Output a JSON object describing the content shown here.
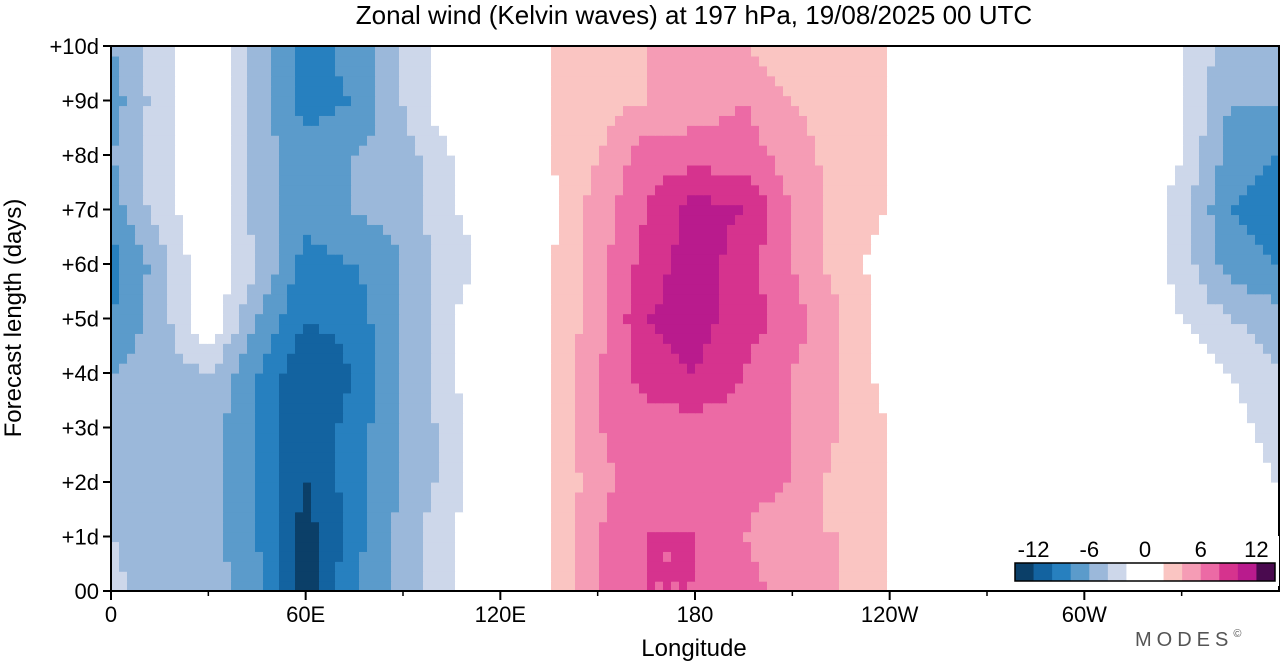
{
  "chart_data": {
    "type": "heatmap",
    "title": "Zonal wind (Kelvin waves) at 197 hPa,  19/08/2025  00 UTC",
    "xlabel": "Longitude",
    "ylabel": "Forecast length (days)",
    "x_ticks": [
      {
        "lon": 0,
        "label": "0"
      },
      {
        "lon": 60,
        "label": "60E"
      },
      {
        "lon": 120,
        "label": "120E"
      },
      {
        "lon": 180,
        "label": "180"
      },
      {
        "lon": 240,
        "label": "120W"
      },
      {
        "lon": 300,
        "label": "60W"
      }
    ],
    "x_minor_ticks": [
      30,
      90,
      150,
      210,
      270,
      330
    ],
    "xlim": [
      0,
      360
    ],
    "y_ticks": [
      {
        "day": 0,
        "label": "00"
      },
      {
        "day": 1,
        "label": "+1d"
      },
      {
        "day": 2,
        "label": "+2d"
      },
      {
        "day": 3,
        "label": "+3d"
      },
      {
        "day": 4,
        "label": "+4d"
      },
      {
        "day": 5,
        "label": "+5d"
      },
      {
        "day": 6,
        "label": "+6d"
      },
      {
        "day": 7,
        "label": "+7d"
      },
      {
        "day": 8,
        "label": "+8d"
      },
      {
        "day": 9,
        "label": "+9d"
      },
      {
        "day": 10,
        "label": "+10d"
      }
    ],
    "ylim": [
      0,
      10
    ],
    "x_lon": [
      0,
      15,
      30,
      45,
      60,
      75,
      90,
      105,
      120,
      135,
      150,
      165,
      180,
      195,
      210,
      225,
      240,
      255,
      270,
      285,
      300,
      315,
      330,
      345,
      360
    ],
    "y_days": [
      0,
      1,
      2,
      3,
      4,
      5,
      6,
      7,
      8,
      9,
      10
    ],
    "values": [
      [
        -3,
        -6,
        -5,
        -7,
        -13,
        -8,
        -5,
        -2,
        0,
        2,
        6,
        8,
        8,
        7,
        5,
        4,
        2,
        1,
        1,
        0,
        -1,
        -1,
        -1,
        1,
        0
      ],
      [
        -4,
        -6,
        -5,
        -8,
        -13,
        -9,
        -5,
        -2,
        0,
        2,
        6,
        8,
        8,
        6,
        4,
        4,
        2,
        1,
        1,
        0,
        -1,
        -1,
        1,
        2,
        -1
      ],
      [
        -4,
        -6,
        -5,
        -8,
        -12,
        -9,
        -6,
        -3,
        1,
        2,
        5,
        8,
        7,
        7,
        6,
        3,
        2,
        1,
        0,
        -1,
        -1,
        -1,
        0,
        -1,
        -2
      ],
      [
        -5,
        -6,
        -5,
        -8,
        -12,
        -9,
        -6,
        -3,
        1,
        2,
        6,
        7,
        7,
        7,
        6,
        4,
        2,
        0,
        -1,
        -1,
        -1,
        -1,
        0,
        -1,
        -3
      ],
      [
        -6,
        -5,
        -4,
        -8,
        -12,
        -10,
        -6,
        -2,
        -1,
        2,
        6,
        9,
        10,
        8,
        6,
        4,
        1,
        0,
        0,
        0,
        -1,
        -1,
        0,
        -2,
        -4
      ],
      [
        -8,
        -5,
        0,
        -6,
        -10,
        -9,
        -6,
        -2,
        0,
        2,
        5,
        10,
        11,
        9,
        7,
        4,
        1,
        0,
        -1,
        0,
        1,
        1,
        -2,
        -4,
        -5
      ],
      [
        -9,
        -5,
        0,
        -4,
        -9,
        -8,
        -6,
        -3,
        -1,
        2,
        5,
        9,
        11,
        9,
        6,
        3,
        1,
        0,
        0,
        0,
        1,
        0,
        -3,
        -7,
        -8
      ],
      [
        -7,
        -3,
        0,
        -5,
        -7,
        -6,
        -5,
        -2,
        -1,
        1,
        5,
        8,
        11,
        10,
        6,
        3,
        2,
        0,
        0,
        0,
        1,
        0,
        -3,
        -8,
        -9
      ],
      [
        -6,
        -3,
        0,
        -5,
        -7,
        -6,
        -5,
        -2,
        0,
        2,
        4,
        7,
        7,
        7,
        5,
        3,
        2,
        1,
        0,
        0,
        0,
        0,
        -2,
        -7,
        -8
      ],
      [
        -7,
        -3,
        0,
        -5,
        -9,
        -8,
        -4,
        0,
        0,
        2,
        3,
        4,
        5,
        6,
        4,
        3,
        2,
        1,
        0,
        0,
        0,
        0,
        -2,
        -6,
        -6
      ],
      [
        -6,
        -3,
        0,
        -5,
        -9,
        -7,
        -4,
        0,
        0,
        2,
        3,
        4,
        4,
        4,
        2,
        2,
        2,
        1,
        0,
        0,
        0,
        0,
        -2,
        -5,
        -6
      ]
    ],
    "colorbar": {
      "labels": [
        "-12",
        "-6",
        "0",
        "6",
        "12"
      ],
      "colors": [
        "#0b3f68",
        "#1363a0",
        "#2780bf",
        "#5b9bcb",
        "#9bb8da",
        "#cdd7ea",
        "#ffffff",
        "#ffffff",
        "#fac5c2",
        "#f59cb5",
        "#ec6aa5",
        "#d6338e",
        "#b91b8d",
        "#4a0a4f"
      ],
      "levels": [
        -14,
        -12,
        -10,
        -8,
        -6,
        -4,
        -2,
        0,
        2,
        4,
        6,
        8,
        10,
        12,
        14
      ]
    }
  },
  "watermark": "MODES",
  "watermark_mark": "©"
}
